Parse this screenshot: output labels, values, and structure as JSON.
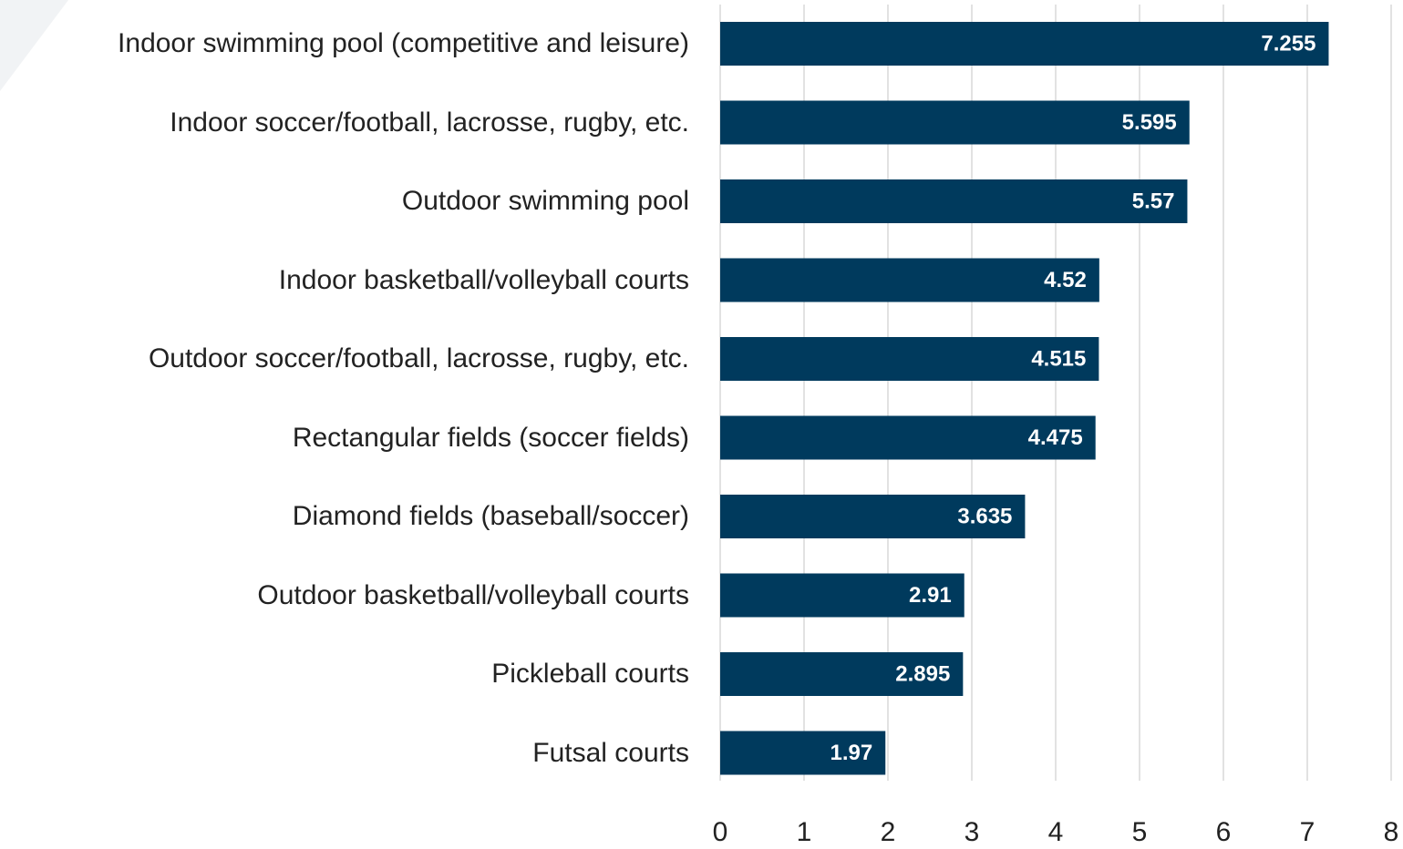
{
  "chart_data": {
    "type": "bar",
    "orientation": "horizontal",
    "categories": [
      "Indoor swimming pool (competitive and leisure)",
      "Indoor soccer/football, lacrosse, rugby, etc.",
      "Outdoor swimming pool",
      "Indoor basketball/volleyball courts",
      "Outdoor soccer/football, lacrosse, rugby, etc.",
      "Rectangular fields (soccer fields)",
      "Diamond fields (baseball/soccer)",
      "Outdoor basketball/volleyball courts",
      "Pickleball courts",
      "Futsal courts"
    ],
    "values": [
      7.255,
      5.595,
      5.57,
      4.52,
      4.515,
      4.475,
      3.635,
      2.91,
      2.895,
      1.97
    ],
    "color": "#003a5d",
    "xlim": [
      0,
      8
    ],
    "xticks": [
      0,
      1,
      2,
      3,
      4,
      5,
      6,
      7,
      8
    ],
    "grid": true
  }
}
